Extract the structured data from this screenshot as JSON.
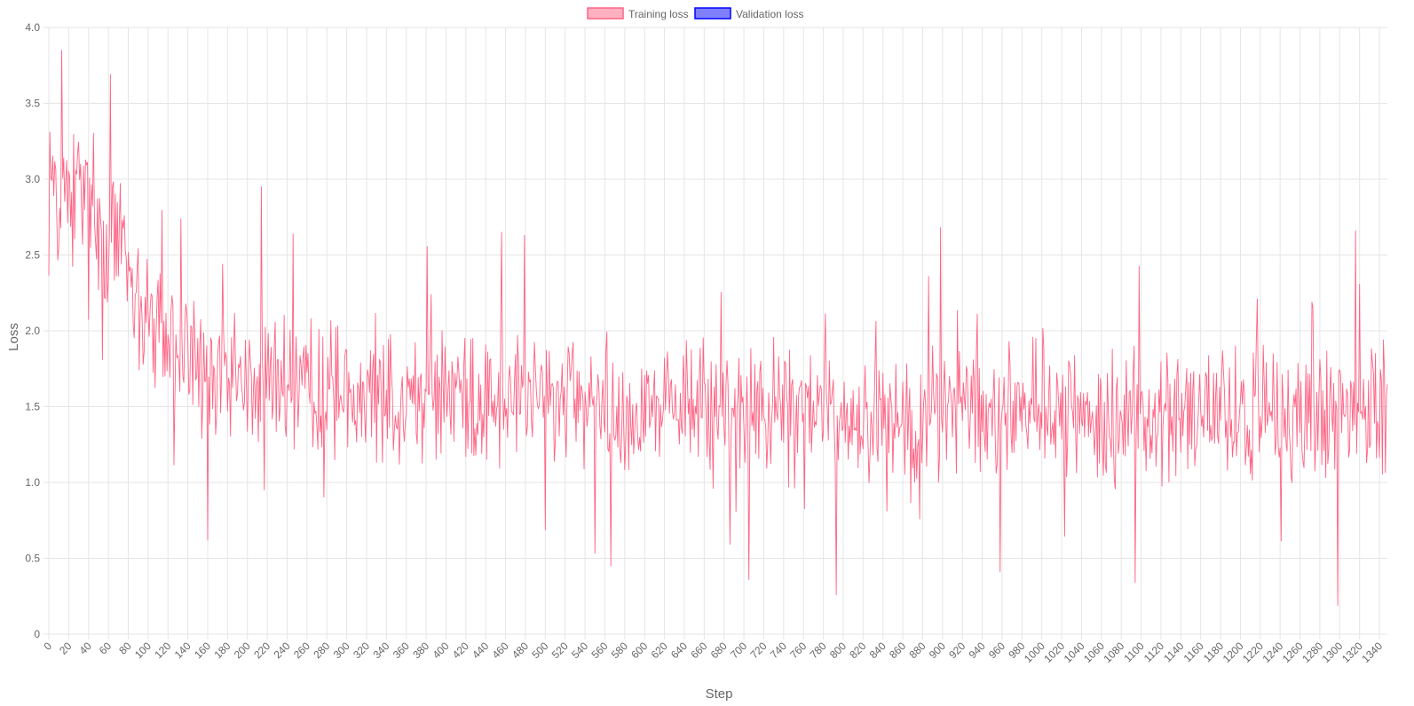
{
  "chart_data": {
    "type": "line",
    "xlabel": "Step",
    "ylabel": "Loss",
    "xlim": [
      0,
      1348
    ],
    "ylim": [
      0,
      4.0
    ],
    "x_ticks": [
      0,
      20,
      40,
      60,
      80,
      100,
      120,
      140,
      160,
      180,
      200,
      220,
      240,
      260,
      280,
      300,
      320,
      340,
      360,
      380,
      400,
      420,
      440,
      460,
      480,
      500,
      520,
      540,
      560,
      580,
      600,
      620,
      640,
      660,
      680,
      700,
      720,
      740,
      760,
      780,
      800,
      820,
      840,
      860,
      880,
      900,
      920,
      940,
      960,
      980,
      1000,
      1020,
      1040,
      1060,
      1080,
      1100,
      1120,
      1140,
      1160,
      1180,
      1200,
      1220,
      1240,
      1260,
      1280,
      1300,
      1320,
      1340
    ],
    "y_ticks": [
      "0",
      "0.5",
      "1.0",
      "1.5",
      "2.0",
      "2.5",
      "3.0",
      "3.5",
      "4.0"
    ],
    "grid": true,
    "legend_position": "top-center",
    "series": [
      {
        "name": "Training loss",
        "color": "#ff6384",
        "fill": "#ffb1c1",
        "trend_anchors": [
          [
            0,
            3.0
          ],
          [
            60,
            2.7
          ],
          [
            100,
            2.05
          ],
          [
            160,
            1.7
          ],
          [
            300,
            1.6
          ],
          [
            600,
            1.5
          ],
          [
            1000,
            1.45
          ],
          [
            1348,
            1.45
          ]
        ],
        "spikes": [
          [
            13,
            3.85
          ],
          [
            62,
            3.69
          ],
          [
            214,
            2.95
          ],
          [
            456,
            2.65
          ],
          [
            479,
            2.63
          ],
          [
            898,
            2.68
          ],
          [
            1316,
            2.66
          ],
          [
            566,
            0.45
          ],
          [
            705,
            0.36
          ],
          [
            793,
            0.26
          ],
          [
            1094,
            0.34
          ],
          [
            1298,
            0.19
          ],
          [
            958,
            0.41
          ],
          [
            160,
            0.62
          ]
        ]
      },
      {
        "name": "Validation loss",
        "color": "#0000ff",
        "fill": "#8080ff",
        "points": []
      }
    ]
  }
}
